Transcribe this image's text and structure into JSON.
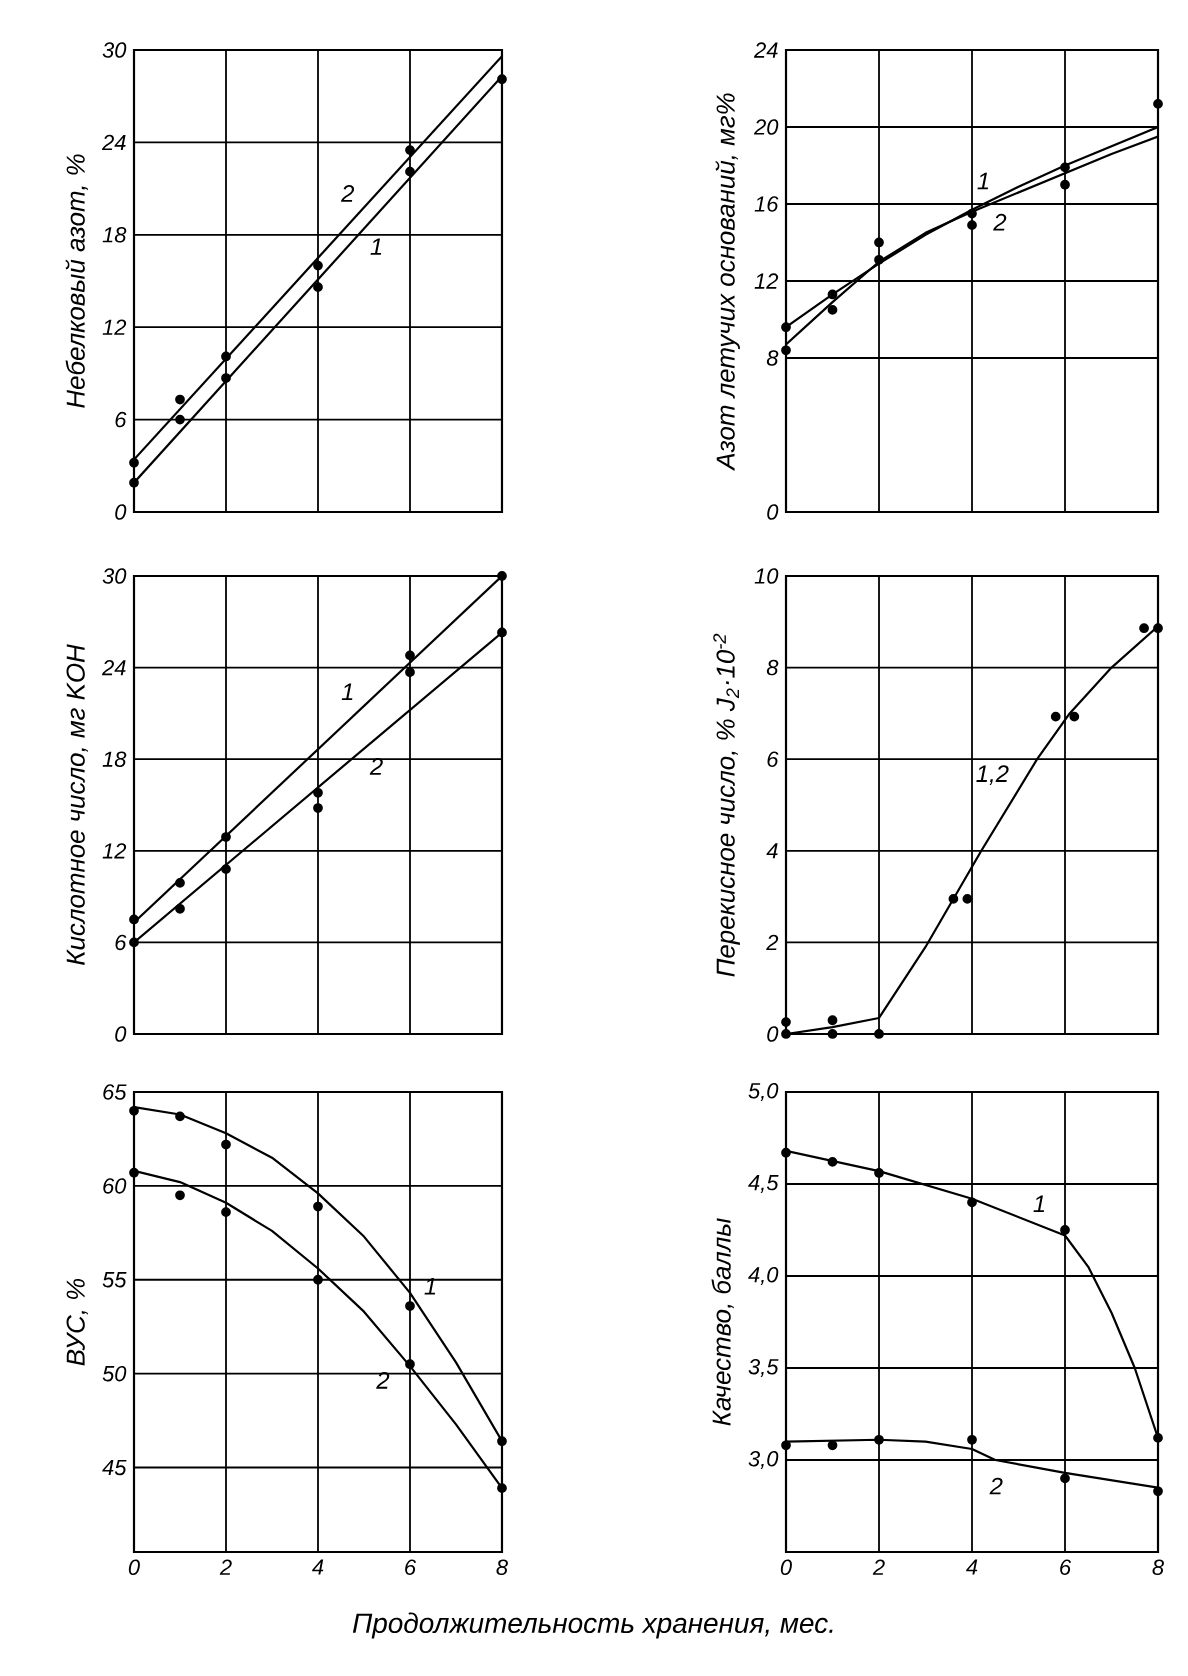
{
  "chart_data": [
    {
      "type": "line",
      "ylabel": "Небелковый азот, %",
      "xlim": [
        0,
        8
      ],
      "xticks": [
        0,
        2,
        4,
        6,
        8
      ],
      "ylim": [
        0,
        30
      ],
      "yticks": [
        0,
        6,
        12,
        18,
        24,
        30
      ],
      "grid": true,
      "tick_labels": "y",
      "series": [
        {
          "type": "scatter",
          "color": "#000000",
          "x": [
            0,
            1,
            2,
            4,
            6
          ],
          "values": [
            3.2,
            7.3,
            10.1,
            16.0,
            23.5
          ]
        },
        {
          "type": "scatter",
          "color": "#000000",
          "x": [
            0,
            1,
            2,
            4,
            6,
            8
          ],
          "values": [
            1.9,
            6.0,
            8.7,
            14.6,
            22.1,
            28.1
          ]
        },
        {
          "type": "line",
          "name": "1",
          "color": "#000000",
          "x": [
            0,
            8
          ],
          "values": [
            1.9,
            28.3
          ]
        },
        {
          "type": "line",
          "name": "2",
          "color": "#000000",
          "x": [
            0,
            8
          ],
          "values": [
            3.4,
            29.6
          ]
        }
      ]
    },
    {
      "type": "line",
      "ylabel": "Азот летучих оснований, мг%",
      "xlim": [
        0,
        8
      ],
      "xticks": [
        0,
        2,
        4,
        6,
        8
      ],
      "ylim": [
        0,
        24
      ],
      "yticks": [
        0,
        8,
        12,
        16,
        20,
        24
      ],
      "grid": true,
      "tick_labels": "y",
      "series": [
        {
          "type": "scatter",
          "color": "#000000",
          "x": [
            0,
            1,
            2,
            4,
            6,
            8
          ],
          "values": [
            9.6,
            11.3,
            14.0,
            15.5,
            17.9,
            21.2
          ]
        },
        {
          "type": "scatter",
          "color": "#000000",
          "x": [
            0,
            1,
            2,
            4,
            6
          ],
          "values": [
            8.4,
            10.5,
            13.1,
            14.9,
            17.0
          ]
        },
        {
          "type": "line",
          "name": "1",
          "color": "#000000",
          "x": [
            0,
            1,
            2,
            3,
            4,
            5,
            6,
            7,
            8
          ],
          "values": [
            9.6,
            11.3,
            12.9,
            14.4,
            15.7,
            16.9,
            18.0,
            19.0,
            20.0
          ]
        },
        {
          "type": "line",
          "name": "2",
          "color": "#000000",
          "x": [
            0,
            1,
            2,
            3,
            4,
            5,
            6,
            7,
            8
          ],
          "values": [
            8.7,
            10.9,
            13.0,
            14.5,
            15.6,
            16.6,
            17.6,
            18.6,
            19.5
          ]
        }
      ]
    },
    {
      "type": "line",
      "ylabel": "Кислотное число, мг KOH",
      "xlim": [
        0,
        8
      ],
      "xticks": [
        0,
        2,
        4,
        6,
        8
      ],
      "ylim": [
        0,
        30
      ],
      "yticks": [
        0,
        6,
        12,
        18,
        24,
        30
      ],
      "grid": true,
      "tick_labels": "y",
      "series": [
        {
          "type": "scatter",
          "color": "#000000",
          "x": [
            0,
            1,
            2,
            4,
            6,
            8
          ],
          "values": [
            7.5,
            9.9,
            12.9,
            15.8,
            24.8,
            30.0
          ]
        },
        {
          "type": "scatter",
          "color": "#000000",
          "x": [
            0,
            1,
            2,
            4,
            6,
            8
          ],
          "values": [
            6.0,
            8.2,
            10.8,
            14.8,
            23.7,
            26.3
          ]
        },
        {
          "type": "line",
          "name": "1",
          "color": "#000000",
          "x": [
            0,
            8
          ],
          "values": [
            7.3,
            30.0
          ]
        },
        {
          "type": "line",
          "name": "2",
          "color": "#000000",
          "x": [
            0,
            8
          ],
          "values": [
            6.0,
            26.3
          ]
        }
      ]
    },
    {
      "type": "line",
      "ylabel": "Перекисное число, % J$_{2}$·10$^{-2}$",
      "xlim": [
        0,
        8
      ],
      "xticks": [
        0,
        2,
        4,
        6,
        8
      ],
      "ylim": [
        0,
        10
      ],
      "yticks": [
        0,
        2,
        4,
        6,
        8,
        10
      ],
      "grid": true,
      "tick_labels": "y",
      "series": [
        {
          "type": "scatter",
          "color": "#000000",
          "x": [
            0,
            0,
            1,
            1,
            2,
            3.6,
            3.9,
            5.8,
            6.2,
            7.7,
            8
          ],
          "values": [
            0.26,
            0,
            0.3,
            0,
            0,
            2.95,
            2.95,
            6.93,
            6.93,
            8.86,
            8.86
          ]
        },
        {
          "type": "line",
          "name": "1,2",
          "color": "#000000",
          "x": [
            0,
            1,
            2,
            3,
            4.2,
            5.4,
            6.1,
            7,
            8
          ],
          "values": [
            0,
            0.15,
            0.35,
            1.9,
            4.0,
            6.0,
            7.0,
            8.0,
            8.9
          ]
        }
      ]
    },
    {
      "type": "line",
      "xlabel": "Продолжительность хранения, мес.",
      "ylabel": "ВУС, %",
      "xlim": [
        0,
        8
      ],
      "xticks": [
        0,
        2,
        4,
        6,
        8
      ],
      "ylim": [
        40.5,
        65
      ],
      "yticks": [
        45,
        50,
        55,
        60,
        65
      ],
      "grid": true,
      "series": [
        {
          "type": "scatter",
          "color": "#000000",
          "x": [
            0,
            1,
            2,
            4,
            6,
            8
          ],
          "values": [
            64.0,
            63.7,
            62.2,
            58.9,
            53.6,
            46.4
          ]
        },
        {
          "type": "scatter",
          "color": "#000000",
          "x": [
            0,
            1,
            2,
            4,
            6,
            8
          ],
          "values": [
            60.7,
            59.5,
            58.6,
            55.0,
            50.5,
            43.9
          ]
        },
        {
          "type": "line",
          "name": "1",
          "color": "#000000",
          "x": [
            0,
            1,
            2,
            3,
            4,
            5,
            6,
            7,
            8
          ],
          "values": [
            64.2,
            63.8,
            62.8,
            61.5,
            59.6,
            57.3,
            54.3,
            50.6,
            46.4
          ]
        },
        {
          "type": "line",
          "name": "2",
          "color": "#000000",
          "x": [
            0,
            1,
            2,
            3,
            4,
            5,
            6,
            7,
            8
          ],
          "values": [
            60.8,
            60.2,
            59.1,
            57.6,
            55.6,
            53.3,
            50.4,
            47.3,
            43.9
          ]
        }
      ]
    },
    {
      "type": "line",
      "ylabel": "Качество, баллы",
      "xlim": [
        0,
        8
      ],
      "xticks": [
        0,
        2,
        4,
        6,
        8
      ],
      "ylim": [
        2.5,
        5.0
      ],
      "yticks": [
        {
          "value": 3.0,
          "label": "3,0"
        },
        {
          "value": 3.5,
          "label": "3,5"
        },
        {
          "value": 4.0,
          "label": "4,0"
        },
        {
          "value": 4.5,
          "label": "4,5"
        },
        {
          "value": 5.0,
          "label": "5,0"
        }
      ],
      "grid": true,
      "series": [
        {
          "type": "scatter",
          "color": "#000000",
          "x": [
            0,
            1,
            2,
            4,
            6,
            8
          ],
          "values": [
            4.67,
            4.62,
            4.56,
            4.4,
            4.25,
            3.12
          ]
        },
        {
          "type": "scatter",
          "color": "#000000",
          "x": [
            0,
            1,
            2,
            4,
            6,
            8
          ],
          "values": [
            3.08,
            3.08,
            3.11,
            3.11,
            2.9,
            2.83
          ]
        },
        {
          "type": "line",
          "name": "1",
          "color": "#000000",
          "x": [
            0,
            2,
            4,
            6,
            6.5,
            7,
            7.5,
            8
          ],
          "values": [
            4.68,
            4.57,
            4.42,
            4.22,
            4.05,
            3.8,
            3.5,
            3.12
          ]
        },
        {
          "type": "line",
          "name": "2",
          "color": "#000000",
          "x": [
            0,
            2,
            3,
            4,
            4.5,
            6,
            8
          ],
          "values": [
            3.1,
            3.11,
            3.1,
            3.06,
            3.0,
            2.93,
            2.85
          ]
        }
      ]
    }
  ]
}
